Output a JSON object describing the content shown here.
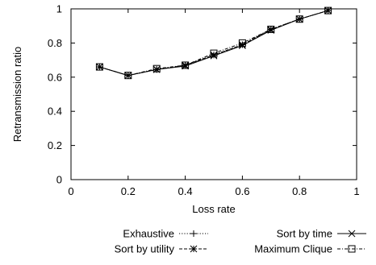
{
  "chart_data": {
    "type": "line",
    "title": "",
    "xlabel": "Loss rate",
    "ylabel": "Retransmission ratio",
    "xlim": [
      0,
      1
    ],
    "ylim": [
      0,
      1
    ],
    "xticks": [
      "0",
      "0.2",
      "0.4",
      "0.6",
      "0.8",
      "1"
    ],
    "yticks": [
      "0",
      "0.2",
      "0.4",
      "0.6",
      "0.8",
      "1"
    ],
    "grid": false,
    "legend_position": "bottom, outside plot, two columns",
    "series": [
      {
        "name": "Exhaustive",
        "marker": "plus",
        "line_style": "dotted",
        "x": [
          0.1,
          0.2,
          0.3,
          0.4,
          0.5,
          0.6,
          0.7,
          0.8,
          0.9
        ],
        "y": [
          0.66,
          0.61,
          0.645,
          0.67,
          0.73,
          0.79,
          0.88,
          0.94,
          0.99
        ]
      },
      {
        "name": "Sort by time",
        "marker": "cross",
        "line_style": "solid",
        "x": [
          0.1,
          0.2,
          0.3,
          0.4,
          0.5,
          0.6,
          0.7,
          0.8,
          0.9
        ],
        "y": [
          0.66,
          0.61,
          0.645,
          0.665,
          0.725,
          0.785,
          0.875,
          0.94,
          0.99
        ]
      },
      {
        "name": "Sort by utility",
        "marker": "star",
        "line_style": "dashed",
        "x": [
          0.1,
          0.2,
          0.3,
          0.4,
          0.5,
          0.6,
          0.7,
          0.8,
          0.9
        ],
        "y": [
          0.66,
          0.61,
          0.645,
          0.67,
          0.73,
          0.79,
          0.88,
          0.94,
          0.99
        ]
      },
      {
        "name": "Maximum Clique",
        "marker": "square",
        "line_style": "dash-dot",
        "x": [
          0.1,
          0.2,
          0.3,
          0.4,
          0.5,
          0.6,
          0.7,
          0.8,
          0.9
        ],
        "y": [
          0.66,
          0.61,
          0.65,
          0.67,
          0.74,
          0.8,
          0.88,
          0.94,
          0.99
        ]
      }
    ]
  }
}
